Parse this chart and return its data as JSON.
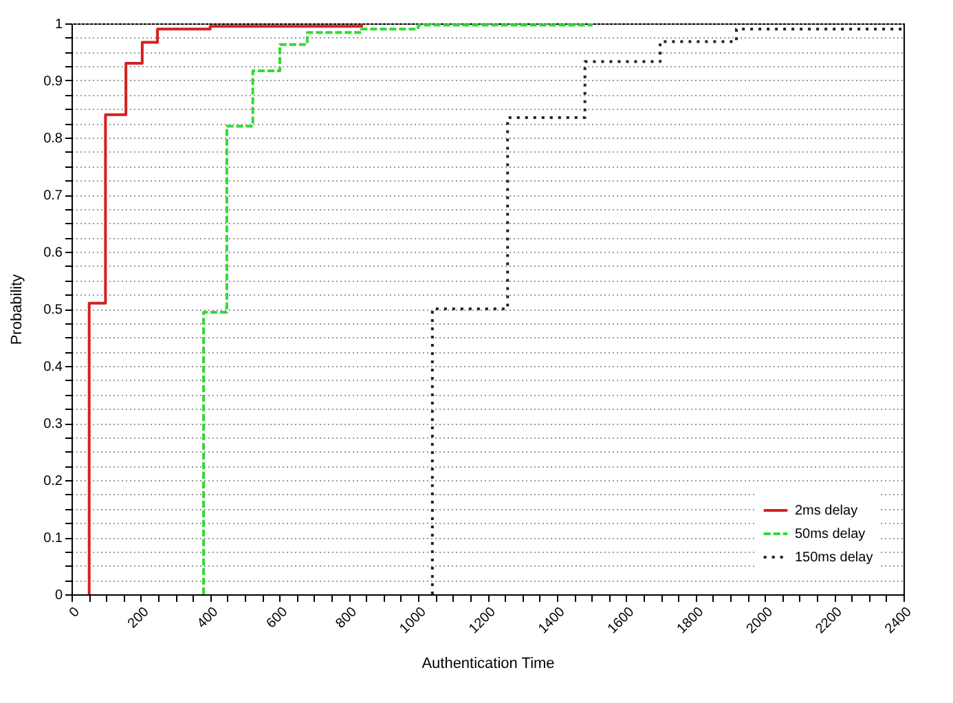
{
  "chart_data": {
    "type": "step",
    "xlabel": "Authentication Time",
    "ylabel": "Probability",
    "xlim": [
      0,
      2400
    ],
    "ylim": [
      0,
      1
    ],
    "xticks": [
      0,
      {
        "value": 50,
        "label": null
      },
      {
        "value": 100,
        "label": null
      },
      {
        "value": 150,
        "label": null
      },
      200,
      {
        "value": 250,
        "label": null
      },
      {
        "value": 300,
        "label": null
      },
      {
        "value": 350,
        "label": null
      },
      400,
      {
        "value": 450,
        "label": null
      },
      {
        "value": 500,
        "label": null
      },
      {
        "value": 550,
        "label": null
      },
      600,
      {
        "value": 650,
        "label": null
      },
      {
        "value": 700,
        "label": null
      },
      {
        "value": 750,
        "label": null
      },
      800,
      {
        "value": 850,
        "label": null
      },
      {
        "value": 900,
        "label": null
      },
      {
        "value": 950,
        "label": null
      },
      1000,
      {
        "value": 1050,
        "label": null
      },
      {
        "value": 1100,
        "label": null
      },
      {
        "value": 1150,
        "label": null
      },
      1200,
      {
        "value": 1250,
        "label": null
      },
      {
        "value": 1300,
        "label": null
      },
      {
        "value": 1350,
        "label": null
      },
      1400,
      {
        "value": 1450,
        "label": null
      },
      {
        "value": 1500,
        "label": null
      },
      {
        "value": 1550,
        "label": null
      },
      1600,
      {
        "value": 1650,
        "label": null
      },
      {
        "value": 1700,
        "label": null
      },
      {
        "value": 1750,
        "label": null
      },
      1800,
      {
        "value": 1850,
        "label": null
      },
      {
        "value": 1900,
        "label": null
      },
      {
        "value": 1950,
        "label": null
      },
      2000,
      {
        "value": 2050,
        "label": null
      },
      {
        "value": 2100,
        "label": null
      },
      {
        "value": 2150,
        "label": null
      },
      2200,
      {
        "value": 2250,
        "label": null
      },
      {
        "value": 2300,
        "label": null
      },
      {
        "value": 2350,
        "label": null
      },
      2400
    ],
    "yticks": [
      0,
      {
        "value": 0.025,
        "label": null
      },
      {
        "value": 0.05,
        "label": null
      },
      {
        "value": 0.075,
        "label": null
      },
      0.1,
      {
        "value": 0.125,
        "label": null
      },
      {
        "value": 0.15,
        "label": null
      },
      {
        "value": 0.175,
        "label": null
      },
      0.2,
      {
        "value": 0.225,
        "label": null
      },
      {
        "value": 0.25,
        "label": null
      },
      {
        "value": 0.275,
        "label": null
      },
      0.3,
      {
        "value": 0.325,
        "label": null
      },
      {
        "value": 0.35,
        "label": null
      },
      {
        "value": 0.375,
        "label": null
      },
      0.4,
      {
        "value": 0.425,
        "label": null
      },
      {
        "value": 0.45,
        "label": null
      },
      {
        "value": 0.475,
        "label": null
      },
      0.5,
      {
        "value": 0.525,
        "label": null
      },
      {
        "value": 0.55,
        "label": null
      },
      {
        "value": 0.575,
        "label": null
      },
      0.6,
      {
        "value": 0.625,
        "label": null
      },
      {
        "value": 0.65,
        "label": null
      },
      {
        "value": 0.675,
        "label": null
      },
      0.7,
      {
        "value": 0.725,
        "label": null
      },
      {
        "value": 0.75,
        "label": null
      },
      {
        "value": 0.775,
        "label": null
      },
      0.8,
      {
        "value": 0.825,
        "label": null
      },
      {
        "value": 0.85,
        "label": null
      },
      {
        "value": 0.875,
        "label": null
      },
      0.9,
      {
        "value": 0.925,
        "label": null
      },
      {
        "value": 0.95,
        "label": null
      },
      {
        "value": 0.975,
        "label": null
      },
      1
    ],
    "grid": "y",
    "legend": "bottom right",
    "series": [
      {
        "name": "2ms delay",
        "color": "#d42020",
        "line_style": "solid",
        "x": [
          51,
          51,
          98,
          157,
          204,
          248,
          400,
          837
        ],
        "values": [
          0,
          0.51,
          0.84,
          0.93,
          0.967,
          0.99,
          0.995,
          1
        ]
      },
      {
        "name": "50ms delay",
        "color": "#33d933",
        "line_style": "dashed",
        "x": [
          381,
          381,
          448,
          523,
          601,
          680,
          837,
          1000,
          1500
        ],
        "values": [
          0,
          0.494,
          0.82,
          0.917,
          0.963,
          0.984,
          0.99,
          0.997,
          1
        ]
      },
      {
        "name": "150ms delay",
        "color": "#222222",
        "line_style": "dotted",
        "x": [
          1041,
          1041,
          1258,
          1481,
          1698,
          1918,
          2400
        ],
        "values": [
          0,
          0.5,
          0.835,
          0.933,
          0.968,
          0.99,
          0.99
        ]
      }
    ]
  }
}
